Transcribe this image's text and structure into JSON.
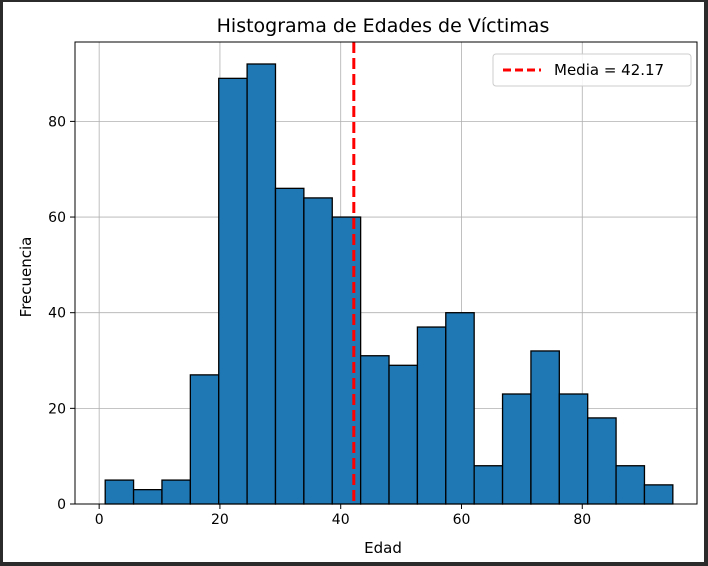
{
  "chart_data": {
    "type": "bar",
    "title": "Histograma de Edades de Víctimas",
    "xlabel": "Edad",
    "ylabel": "Frecuencia",
    "xlim": [
      -4,
      99
    ],
    "ylim": [
      0,
      96.6
    ],
    "xticks": [
      0,
      20,
      40,
      60,
      80
    ],
    "yticks": [
      0,
      20,
      40,
      60,
      80
    ],
    "grid": true,
    "legend_position": "top-right",
    "bar_color": "#1f77b4",
    "bar_edge_color": "#000000",
    "bin_edges": [
      1,
      5.7,
      10.4,
      15.1,
      19.8,
      24.5,
      29.2,
      33.9,
      38.6,
      43.3,
      48,
      52.7,
      57.4,
      62.1,
      66.8,
      71.5,
      76.2,
      80.9,
      85.6,
      90.3,
      95
    ],
    "values": [
      5,
      3,
      5,
      27,
      89,
      92,
      66,
      64,
      60,
      31,
      29,
      37,
      40,
      8,
      23,
      32,
      23,
      18,
      8,
      4
    ],
    "mean": {
      "value": 42.17,
      "label": "Media = 42.17",
      "color": "#ff0000",
      "style": "dashed"
    }
  }
}
